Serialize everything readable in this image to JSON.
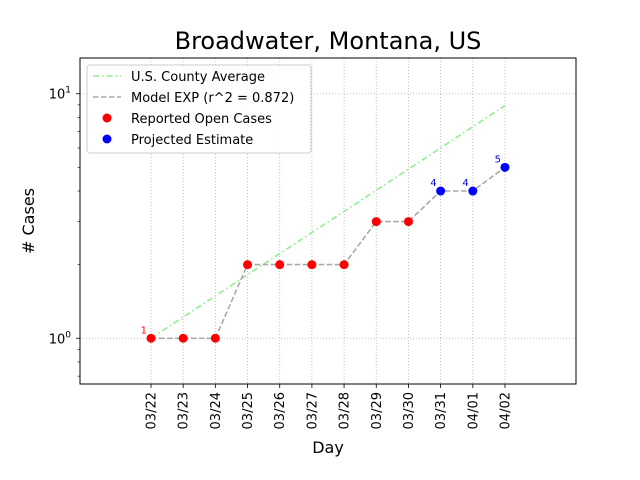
{
  "chart_data": {
    "type": "line",
    "title": "Broadwater, Montana, US",
    "xlabel": "Day",
    "ylabel": "# Cases",
    "y_scale": "log",
    "ylim": [
      0.65,
      14.0
    ],
    "y_ticks": [
      {
        "value": 1,
        "base": "10",
        "exp": "0"
      },
      {
        "value": 10,
        "base": "10",
        "exp": "1"
      }
    ],
    "categories": [
      "03/22",
      "03/23",
      "03/24",
      "03/25",
      "03/26",
      "03/27",
      "03/28",
      "03/29",
      "03/30",
      "03/31",
      "04/01",
      "04/02"
    ],
    "grid": true,
    "legend_position": "top-left",
    "series": [
      {
        "name": "U.S. County Average",
        "style": "dashdot",
        "color": "#90ee90",
        "values": [
          1.0,
          1.22,
          1.49,
          1.82,
          2.22,
          2.71,
          3.3,
          4.03,
          4.92,
          6.0,
          7.33,
          8.94
        ]
      },
      {
        "name": "Model EXP (r^2 = 0.872)",
        "style": "dashed",
        "color": "#a9a9a9",
        "values": [
          1,
          1,
          1,
          2,
          2,
          2,
          2,
          3,
          3,
          4,
          4,
          5
        ]
      },
      {
        "name": "Reported Open Cases",
        "style": "marker",
        "color": "#ff0000",
        "values": [
          1,
          1,
          1,
          2,
          2,
          2,
          2,
          3,
          3,
          null,
          null,
          null
        ]
      },
      {
        "name": "Projected Estimate",
        "style": "marker",
        "color": "#0000ff",
        "values": [
          null,
          null,
          null,
          null,
          null,
          null,
          null,
          null,
          null,
          4,
          4,
          5
        ]
      }
    ],
    "annotations": [
      {
        "x": "03/22",
        "value": 1,
        "text": "1",
        "color": "#ff0000"
      },
      {
        "x": "03/31",
        "value": 4,
        "text": "4",
        "color": "#0000cc"
      },
      {
        "x": "04/01",
        "value": 4,
        "text": "4",
        "color": "#0000cc"
      },
      {
        "x": "04/02",
        "value": 5,
        "text": "5",
        "color": "#0000cc"
      }
    ]
  }
}
